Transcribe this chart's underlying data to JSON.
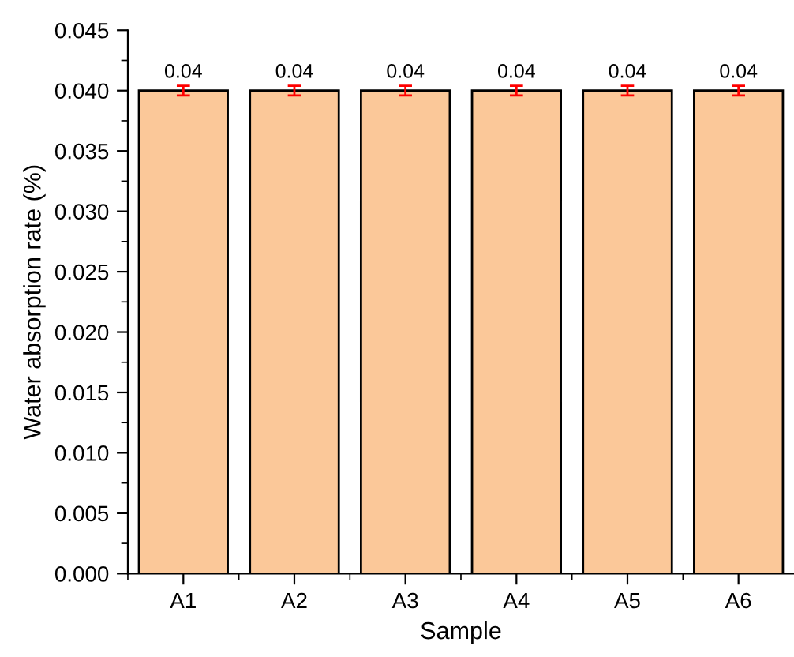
{
  "chart_data": {
    "type": "bar",
    "xlabel": "Sample",
    "ylabel": "Water absorption rate (%)",
    "categories": [
      "A1",
      "A2",
      "A3",
      "A4",
      "A5",
      "A6"
    ],
    "values": [
      0.04,
      0.04,
      0.04,
      0.04,
      0.04,
      0.04
    ],
    "errors": [
      0.0004,
      0.0004,
      0.0004,
      0.0004,
      0.0004,
      0.0004
    ],
    "color": "#fbc899",
    "ylim": [
      0,
      0.045
    ],
    "yticks": [
      {
        "value": 0,
        "label": "0.000"
      },
      {
        "value": 0.005,
        "label": "0.005"
      },
      {
        "value": 0.01,
        "label": "0.010"
      },
      {
        "value": 0.015,
        "label": "0.015"
      },
      {
        "value": 0.02,
        "label": "0.020"
      },
      {
        "value": 0.025,
        "label": "0.025"
      },
      {
        "value": 0.03,
        "label": "0.030"
      },
      {
        "value": 0.035,
        "label": "0.035"
      },
      {
        "value": 0.04,
        "label": "0.040"
      },
      {
        "value": 0.045,
        "label": "0.045"
      }
    ],
    "data_labels": true,
    "grid": false,
    "legend": false
  }
}
